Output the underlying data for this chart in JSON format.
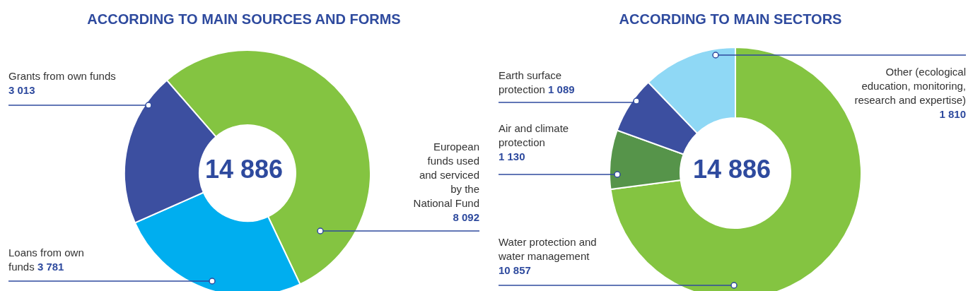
{
  "chart_data": [
    {
      "type": "donut",
      "title": "ACCORDING TO MAIN SOURCES AND FORMS",
      "categories": [
        "European funds used and serviced by the National Fund",
        "Loans from own funds",
        "Grants from own funds"
      ],
      "values": [
        8092,
        3781,
        3013
      ],
      "value_labels": [
        "8 092",
        "3 781",
        "3 013"
      ],
      "colors": [
        "#84c441",
        "#00aeef",
        "#3c4fa0"
      ],
      "annotations": [
        "14 886"
      ]
    },
    {
      "type": "donut",
      "title": "ACCORDING TO MAIN SECTORS",
      "categories": [
        "Water protection and water management",
        "Air and climate protection",
        "Earth surface protection",
        "Other (ecological education, monitoring, research and expertise)"
      ],
      "values": [
        10857,
        1130,
        1089,
        1810
      ],
      "value_labels": [
        "10 857",
        "1 130",
        "1 089",
        "1 810"
      ],
      "colors": [
        "#84c441",
        "#56944a",
        "#3c4fa0",
        "#8fd8f5"
      ],
      "annotations": [
        "14 886"
      ]
    }
  ]
}
